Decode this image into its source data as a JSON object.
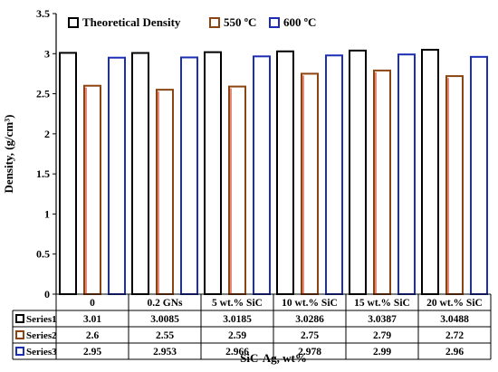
{
  "chart_data": {
    "type": "bar",
    "xlabel": "SiC-Ag, wt%",
    "ylabel": "Density, (g/cm³)",
    "ylim": [
      0,
      3.5
    ],
    "yticks": [
      "0",
      "0.5",
      "1",
      "1.5",
      "2",
      "2.5",
      "3",
      "3.5"
    ],
    "ytick_values": [
      0,
      0.5,
      1,
      1.5,
      2,
      2.5,
      3,
      3.5
    ],
    "grid": false,
    "legend": "top-inside",
    "categories": [
      "0",
      "0.2 GNs",
      "5 wt.% SiC",
      "10 wt.% SiC",
      "15 wt.% SiC",
      "20 wt.% SiC"
    ],
    "series": [
      {
        "name": "Theoretical Density",
        "table_name": "Series1",
        "color": "#000000",
        "values": [
          3.01,
          3.0085,
          3.0185,
          3.0286,
          3.0387,
          3.0488
        ],
        "labels": [
          "3.01",
          "3.0085",
          "3.0185",
          "3.0286",
          "3.0387",
          "3.0488"
        ]
      },
      {
        "name": "550 ºC",
        "table_name": "Series2",
        "color": "#8B4513",
        "values": [
          2.6,
          2.55,
          2.59,
          2.75,
          2.79,
          2.72
        ],
        "labels": [
          "2.6",
          "2.55",
          "2.59",
          "2.75",
          "2.79",
          "2.72"
        ]
      },
      {
        "name": "600 ºC",
        "table_name": "Series3",
        "color": "#1c2fb4",
        "values": [
          2.95,
          2.953,
          2.966,
          2.978,
          2.99,
          2.96
        ],
        "labels": [
          "2.95",
          "2.953",
          "2.966",
          "2.978",
          "2.99",
          "2.96"
        ]
      }
    ],
    "series_fill_accents": [
      "#ffffff",
      "#d63b1e",
      "#ffffff"
    ]
  }
}
